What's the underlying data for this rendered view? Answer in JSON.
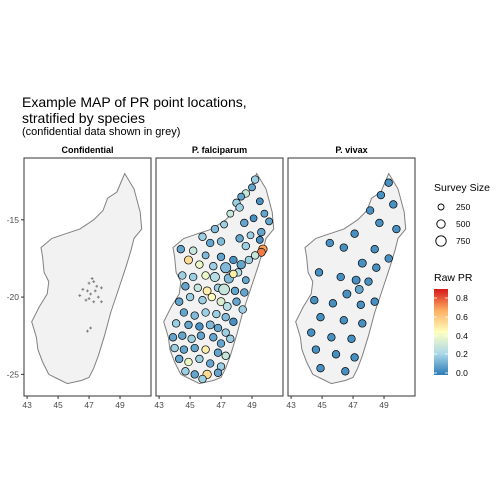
{
  "title": {
    "line1": "Example MAP of PR point locations,",
    "line2": "stratified by species",
    "subtitle": "(confidential data shown in grey)"
  },
  "panels": [
    {
      "label": "Confidential"
    },
    {
      "label": "P. falciparum"
    },
    {
      "label": "P. vivax"
    }
  ],
  "axes": {
    "x_ticks": [
      43,
      45,
      47,
      49
    ],
    "y_ticks": [
      -15,
      -20,
      -25
    ],
    "x_range": [
      42.8,
      51.0
    ],
    "y_range": [
      -26.4,
      -11.0
    ]
  },
  "legend_size": {
    "title": "Survey Size",
    "values": [
      250,
      500,
      750
    ]
  },
  "legend_color": {
    "title": "Raw PR",
    "ticks": [
      "0.8",
      "0.6",
      "0.4",
      "0.2",
      "0.0"
    ],
    "range": [
      0.0,
      0.9
    ],
    "colors": [
      "#2c7bb6",
      "#abd9e9",
      "#ffffbf",
      "#fdae61",
      "#d7191c"
    ]
  },
  "colors": {
    "land": "#f2f2f2",
    "coast": "#808080",
    "confidential": "#7f7f7f",
    "panel_border": "#333333"
  },
  "map_data": {
    "outline": [
      [
        49.3,
        -12.0
      ],
      [
        49.9,
        -13.0
      ],
      [
        50.3,
        -14.5
      ],
      [
        50.4,
        -15.6
      ],
      [
        49.9,
        -16.2
      ],
      [
        49.7,
        -17.0
      ],
      [
        49.4,
        -18.0
      ],
      [
        48.9,
        -19.5
      ],
      [
        48.4,
        -21.0
      ],
      [
        48.0,
        -22.5
      ],
      [
        47.6,
        -23.8
      ],
      [
        47.3,
        -24.6
      ],
      [
        47.0,
        -25.2
      ],
      [
        46.5,
        -25.4
      ],
      [
        45.6,
        -25.6
      ],
      [
        45.0,
        -25.3
      ],
      [
        44.4,
        -25.0
      ],
      [
        44.0,
        -24.2
      ],
      [
        43.7,
        -23.4
      ],
      [
        43.6,
        -22.6
      ],
      [
        43.3,
        -21.6
      ],
      [
        43.8,
        -20.6
      ],
      [
        44.3,
        -19.8
      ],
      [
        44.4,
        -19.0
      ],
      [
        44.1,
        -18.4
      ],
      [
        44.0,
        -17.4
      ],
      [
        43.9,
        -16.8
      ],
      [
        44.6,
        -16.2
      ],
      [
        45.5,
        -15.9
      ],
      [
        46.4,
        -15.6
      ],
      [
        47.3,
        -15.0
      ],
      [
        47.9,
        -14.4
      ],
      [
        48.2,
        -13.6
      ],
      [
        48.8,
        -13.2
      ],
      [
        49.3,
        -12.0
      ]
    ],
    "confidential_points": [
      [
        47.2,
        -18.8
      ],
      [
        47.0,
        -19.1
      ],
      [
        47.3,
        -19.0
      ],
      [
        46.9,
        -19.6
      ],
      [
        47.1,
        -19.8
      ],
      [
        47.5,
        -19.3
      ],
      [
        47.8,
        -19.4
      ],
      [
        46.6,
        -19.5
      ],
      [
        47.0,
        -20.1
      ],
      [
        47.3,
        -20.3
      ],
      [
        47.6,
        -20.0
      ],
      [
        46.4,
        -19.9
      ],
      [
        47.4,
        -19.6
      ],
      [
        46.8,
        -20.2
      ],
      [
        47.8,
        -20.3
      ],
      [
        47.1,
        -22.0
      ],
      [
        46.9,
        -22.2
      ]
    ],
    "falciparum_points": [
      [
        49.2,
        -12.4,
        0.2,
        300
      ],
      [
        49.0,
        -12.9,
        0.1,
        250
      ],
      [
        48.6,
        -13.3,
        0.3,
        300
      ],
      [
        48.3,
        -13.5,
        0.1,
        250
      ],
      [
        49.5,
        -13.8,
        0.05,
        250
      ],
      [
        48.0,
        -13.9,
        0.2,
        300
      ],
      [
        49.8,
        -14.6,
        0.1,
        250
      ],
      [
        48.2,
        -14.2,
        0.2,
        300
      ],
      [
        47.6,
        -14.6,
        0.3,
        250
      ],
      [
        49.1,
        -14.9,
        0.05,
        250
      ],
      [
        50.1,
        -15.1,
        0.1,
        250
      ],
      [
        48.5,
        -15.2,
        0.1,
        300
      ],
      [
        47.2,
        -15.3,
        0.2,
        250
      ],
      [
        46.6,
        -15.6,
        0.15,
        300
      ],
      [
        49.6,
        -15.8,
        0.1,
        300
      ],
      [
        48.9,
        -16.0,
        0.2,
        250
      ],
      [
        49.5,
        -16.3,
        0.05,
        250
      ],
      [
        48.2,
        -16.2,
        0.1,
        300
      ],
      [
        45.8,
        -16.1,
        0.2,
        300
      ],
      [
        46.3,
        -16.5,
        0.1,
        300
      ],
      [
        47.0,
        -16.4,
        0.15,
        300
      ],
      [
        48.6,
        -16.7,
        0.2,
        300
      ],
      [
        49.7,
        -16.9,
        0.7,
        400
      ],
      [
        49.6,
        -17.1,
        0.75,
        350
      ],
      [
        49.2,
        -17.3,
        0.3,
        300
      ],
      [
        48.8,
        -17.6,
        0.2,
        300
      ],
      [
        44.4,
        -16.9,
        0.1,
        300
      ],
      [
        45.2,
        -17.0,
        0.3,
        300
      ],
      [
        44.9,
        -17.6,
        0.55,
        350
      ],
      [
        46.0,
        -17.3,
        0.15,
        250
      ],
      [
        47.0,
        -17.4,
        0.1,
        300
      ],
      [
        47.8,
        -17.6,
        0.05,
        300
      ],
      [
        48.3,
        -17.9,
        0.1,
        400
      ],
      [
        45.6,
        -17.9,
        0.4,
        300
      ],
      [
        46.5,
        -18.0,
        0.2,
        300
      ],
      [
        47.3,
        -18.1,
        0.15,
        650
      ],
      [
        48.1,
        -18.4,
        0.25,
        300
      ],
      [
        44.5,
        -18.6,
        0.2,
        300
      ],
      [
        45.2,
        -18.7,
        0.2,
        300
      ],
      [
        46.0,
        -18.6,
        0.4,
        300
      ],
      [
        46.6,
        -18.7,
        0.25,
        500
      ],
      [
        47.5,
        -18.8,
        0.15,
        500
      ],
      [
        47.8,
        -18.5,
        0.5,
        300
      ],
      [
        48.6,
        -18.9,
        0.1,
        250
      ],
      [
        44.7,
        -19.3,
        0.1,
        300
      ],
      [
        45.5,
        -19.4,
        0.3,
        300
      ],
      [
        46.1,
        -19.6,
        0.5,
        350
      ],
      [
        46.8,
        -19.4,
        0.2,
        300
      ],
      [
        47.2,
        -19.5,
        0.3,
        750
      ],
      [
        47.9,
        -19.6,
        0.1,
        300
      ],
      [
        48.5,
        -19.7,
        0.1,
        300
      ],
      [
        44.3,
        -20.3,
        0.1,
        300
      ],
      [
        45.0,
        -20.0,
        0.2,
        300
      ],
      [
        45.8,
        -20.2,
        0.2,
        300
      ],
      [
        46.4,
        -20.0,
        0.45,
        300
      ],
      [
        47.0,
        -20.3,
        0.35,
        350
      ],
      [
        47.4,
        -20.6,
        0.25,
        350
      ],
      [
        48.0,
        -20.3,
        0.1,
        300
      ],
      [
        48.4,
        -20.8,
        0.2,
        300
      ],
      [
        44.6,
        -21.0,
        0.1,
        300
      ],
      [
        45.3,
        -21.2,
        0.15,
        300
      ],
      [
        46.0,
        -21.0,
        0.2,
        300
      ],
      [
        46.7,
        -21.1,
        0.2,
        300
      ],
      [
        47.3,
        -21.3,
        0.15,
        300
      ],
      [
        47.8,
        -21.6,
        0.05,
        300
      ],
      [
        44.1,
        -21.7,
        0.2,
        300
      ],
      [
        44.9,
        -21.8,
        0.1,
        300
      ],
      [
        45.6,
        -21.9,
        0.05,
        300
      ],
      [
        46.3,
        -21.8,
        0.15,
        350
      ],
      [
        46.8,
        -22.0,
        0.1,
        300
      ],
      [
        47.3,
        -22.3,
        0.2,
        300
      ],
      [
        47.6,
        -22.7,
        0.2,
        300
      ],
      [
        43.9,
        -22.6,
        0.1,
        300
      ],
      [
        44.5,
        -22.5,
        0.1,
        300
      ],
      [
        45.1,
        -22.7,
        0.2,
        300
      ],
      [
        45.7,
        -22.5,
        0.1,
        300
      ],
      [
        46.5,
        -22.6,
        0.1,
        300
      ],
      [
        47.0,
        -23.0,
        0.1,
        300
      ],
      [
        44.0,
        -23.3,
        0.2,
        300
      ],
      [
        44.6,
        -23.4,
        0.1,
        300
      ],
      [
        45.3,
        -23.3,
        0.1,
        300
      ],
      [
        46.0,
        -23.4,
        0.5,
        300
      ],
      [
        46.8,
        -23.6,
        0.1,
        300
      ],
      [
        47.3,
        -23.8,
        0.3,
        300
      ],
      [
        44.3,
        -24.0,
        0.1,
        300
      ],
      [
        44.9,
        -24.2,
        0.4,
        300
      ],
      [
        45.6,
        -24.0,
        0.2,
        300
      ],
      [
        46.3,
        -24.3,
        0.1,
        300
      ],
      [
        47.0,
        -24.5,
        0.2,
        300
      ],
      [
        44.7,
        -24.8,
        0.2,
        300
      ],
      [
        45.3,
        -25.0,
        0.1,
        300
      ],
      [
        46.1,
        -25.0,
        0.55,
        400
      ],
      [
        46.8,
        -24.9,
        0.1,
        300
      ],
      [
        45.8,
        -25.3,
        0.2,
        300
      ]
    ],
    "vivax_points": [
      [
        49.3,
        -12.6,
        0.05,
        300
      ],
      [
        48.8,
        -13.4,
        0.05,
        300
      ],
      [
        49.6,
        -14.0,
        0.05,
        300
      ],
      [
        48.1,
        -14.4,
        0.05,
        300
      ],
      [
        48.7,
        -15.2,
        0.05,
        300
      ],
      [
        49.8,
        -15.6,
        0.05,
        300
      ],
      [
        47.1,
        -15.9,
        0.05,
        300
      ],
      [
        45.5,
        -16.5,
        0.05,
        300
      ],
      [
        46.4,
        -16.8,
        0.05,
        300
      ],
      [
        48.4,
        -16.9,
        0.05,
        300
      ],
      [
        49.3,
        -17.5,
        0.05,
        300
      ],
      [
        47.6,
        -17.8,
        0.05,
        350
      ],
      [
        48.5,
        -18.1,
        0.05,
        300
      ],
      [
        44.8,
        -18.4,
        0.05,
        300
      ],
      [
        46.2,
        -18.7,
        0.05,
        300
      ],
      [
        47.2,
        -18.9,
        0.05,
        350
      ],
      [
        48.0,
        -19.0,
        0.05,
        300
      ],
      [
        47.4,
        -19.5,
        0.1,
        350
      ],
      [
        46.6,
        -19.8,
        0.05,
        350
      ],
      [
        44.5,
        -20.2,
        0.05,
        300
      ],
      [
        45.7,
        -20.4,
        0.05,
        300
      ],
      [
        47.5,
        -20.5,
        0.05,
        300
      ],
      [
        48.4,
        -20.3,
        0.05,
        300
      ],
      [
        44.9,
        -21.3,
        0.05,
        300
      ],
      [
        46.4,
        -21.5,
        0.05,
        300
      ],
      [
        47.6,
        -21.7,
        0.05,
        300
      ],
      [
        44.3,
        -22.3,
        0.05,
        300
      ],
      [
        45.6,
        -22.6,
        0.05,
        300
      ],
      [
        46.9,
        -22.7,
        0.05,
        300
      ],
      [
        44.6,
        -23.4,
        0.05,
        300
      ],
      [
        45.9,
        -23.7,
        0.05,
        300
      ],
      [
        47.1,
        -23.9,
        0.05,
        300
      ],
      [
        44.9,
        -24.6,
        0.05,
        300
      ],
      [
        46.5,
        -24.8,
        0.05,
        300
      ]
    ]
  }
}
